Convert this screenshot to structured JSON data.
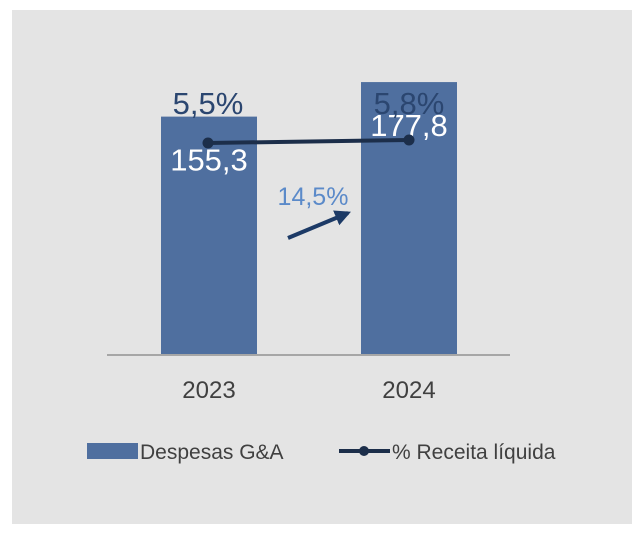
{
  "colors": {
    "background": "#e4e4e4",
    "bar": "#4f6f9f",
    "line": "#1c2e4a",
    "pct_label": "#2b4670",
    "growth_label": "#5b8ac9",
    "bar_label": "#ffffff",
    "axis_text": "#404040",
    "axis_line": "#a6a6a6",
    "arrow": "#1c3a66"
  },
  "chart_data": {
    "type": "bar",
    "categories": [
      "2023",
      "2024"
    ],
    "series": [
      {
        "name": "Despesas G&A",
        "type": "bar",
        "values": [
          155.3,
          177.8
        ],
        "labels": [
          "155,3",
          "177,8"
        ]
      },
      {
        "name": "% Receita líquida",
        "type": "line",
        "values": [
          5.5,
          5.8
        ],
        "labels": [
          "5,5%",
          "5,8%"
        ]
      }
    ],
    "annotations": [
      {
        "text": "14,5%",
        "type": "growth-arrow",
        "from": "2023",
        "to": "2024"
      }
    ],
    "legend": {
      "position": "bottom"
    },
    "grid": false,
    "ylim": [
      0,
      200
    ]
  }
}
